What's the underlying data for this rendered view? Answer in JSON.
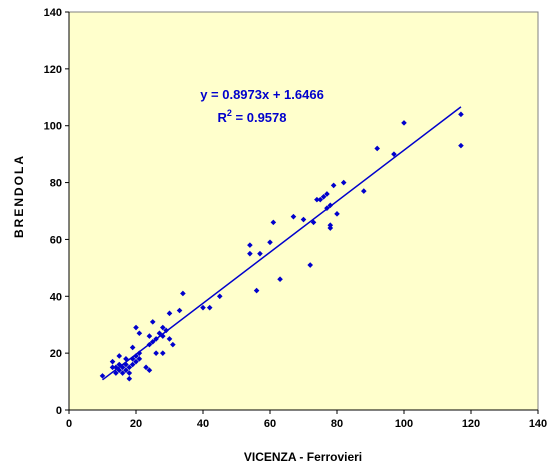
{
  "chart_data": {
    "type": "scatter",
    "xlabel": "VICENZA - Ferrovieri",
    "ylabel": "BRENDOLA",
    "xlim": [
      0,
      140
    ],
    "ylim": [
      0,
      140
    ],
    "x_ticks": [
      "0",
      "20",
      "40",
      "60",
      "80",
      "100",
      "120",
      "140"
    ],
    "y_ticks": [
      "0",
      "20",
      "40",
      "60",
      "80",
      "100",
      "120",
      "140"
    ],
    "grid": false,
    "plot_background": "#FFFFCC",
    "series_color": "#0000CC",
    "points": [
      [
        10,
        12
      ],
      [
        13,
        17
      ],
      [
        13,
        15
      ],
      [
        14,
        13
      ],
      [
        14,
        15
      ],
      [
        15,
        14
      ],
      [
        15,
        16
      ],
      [
        15,
        19
      ],
      [
        16,
        15
      ],
      [
        16,
        13
      ],
      [
        17,
        14
      ],
      [
        17,
        16
      ],
      [
        17,
        18
      ],
      [
        18,
        11
      ],
      [
        18,
        13
      ],
      [
        18,
        15
      ],
      [
        19,
        16
      ],
      [
        19,
        18
      ],
      [
        19,
        22
      ],
      [
        20,
        17
      ],
      [
        20,
        19
      ],
      [
        20,
        29
      ],
      [
        21,
        18
      ],
      [
        21,
        20
      ],
      [
        21,
        27
      ],
      [
        23,
        15
      ],
      [
        24,
        14
      ],
      [
        24,
        23
      ],
      [
        24,
        26
      ],
      [
        25,
        24
      ],
      [
        25,
        31
      ],
      [
        26,
        20
      ],
      [
        26,
        25
      ],
      [
        27,
        27
      ],
      [
        28,
        20
      ],
      [
        28,
        26
      ],
      [
        28,
        29
      ],
      [
        29,
        28
      ],
      [
        30,
        25
      ],
      [
        30,
        34
      ],
      [
        31,
        23
      ],
      [
        33,
        35
      ],
      [
        34,
        41
      ],
      [
        40,
        36
      ],
      [
        42,
        36
      ],
      [
        45,
        40
      ],
      [
        54,
        55
      ],
      [
        54,
        58
      ],
      [
        56,
        42
      ],
      [
        57,
        55
      ],
      [
        60,
        59
      ],
      [
        61,
        66
      ],
      [
        63,
        46
      ],
      [
        67,
        68
      ],
      [
        70,
        67
      ],
      [
        72,
        51
      ],
      [
        73,
        66
      ],
      [
        74,
        74
      ],
      [
        75,
        74
      ],
      [
        76,
        75
      ],
      [
        77,
        76
      ],
      [
        77,
        71
      ],
      [
        78,
        72
      ],
      [
        78,
        65
      ],
      [
        78,
        64
      ],
      [
        79,
        79
      ],
      [
        80,
        69
      ],
      [
        82,
        80
      ],
      [
        88,
        77
      ],
      [
        92,
        92
      ],
      [
        97,
        90
      ],
      [
        100,
        101
      ],
      [
        117,
        104
      ],
      [
        117,
        93
      ]
    ],
    "trendline": {
      "slope": 0.8973,
      "intercept": 1.6466,
      "x_range": [
        10,
        117
      ],
      "equation_label": "y = 0.8973x + 1.6466",
      "r2_prefix": "R",
      "r2_exp": "2",
      "r2_value": " = 0.9578"
    }
  }
}
